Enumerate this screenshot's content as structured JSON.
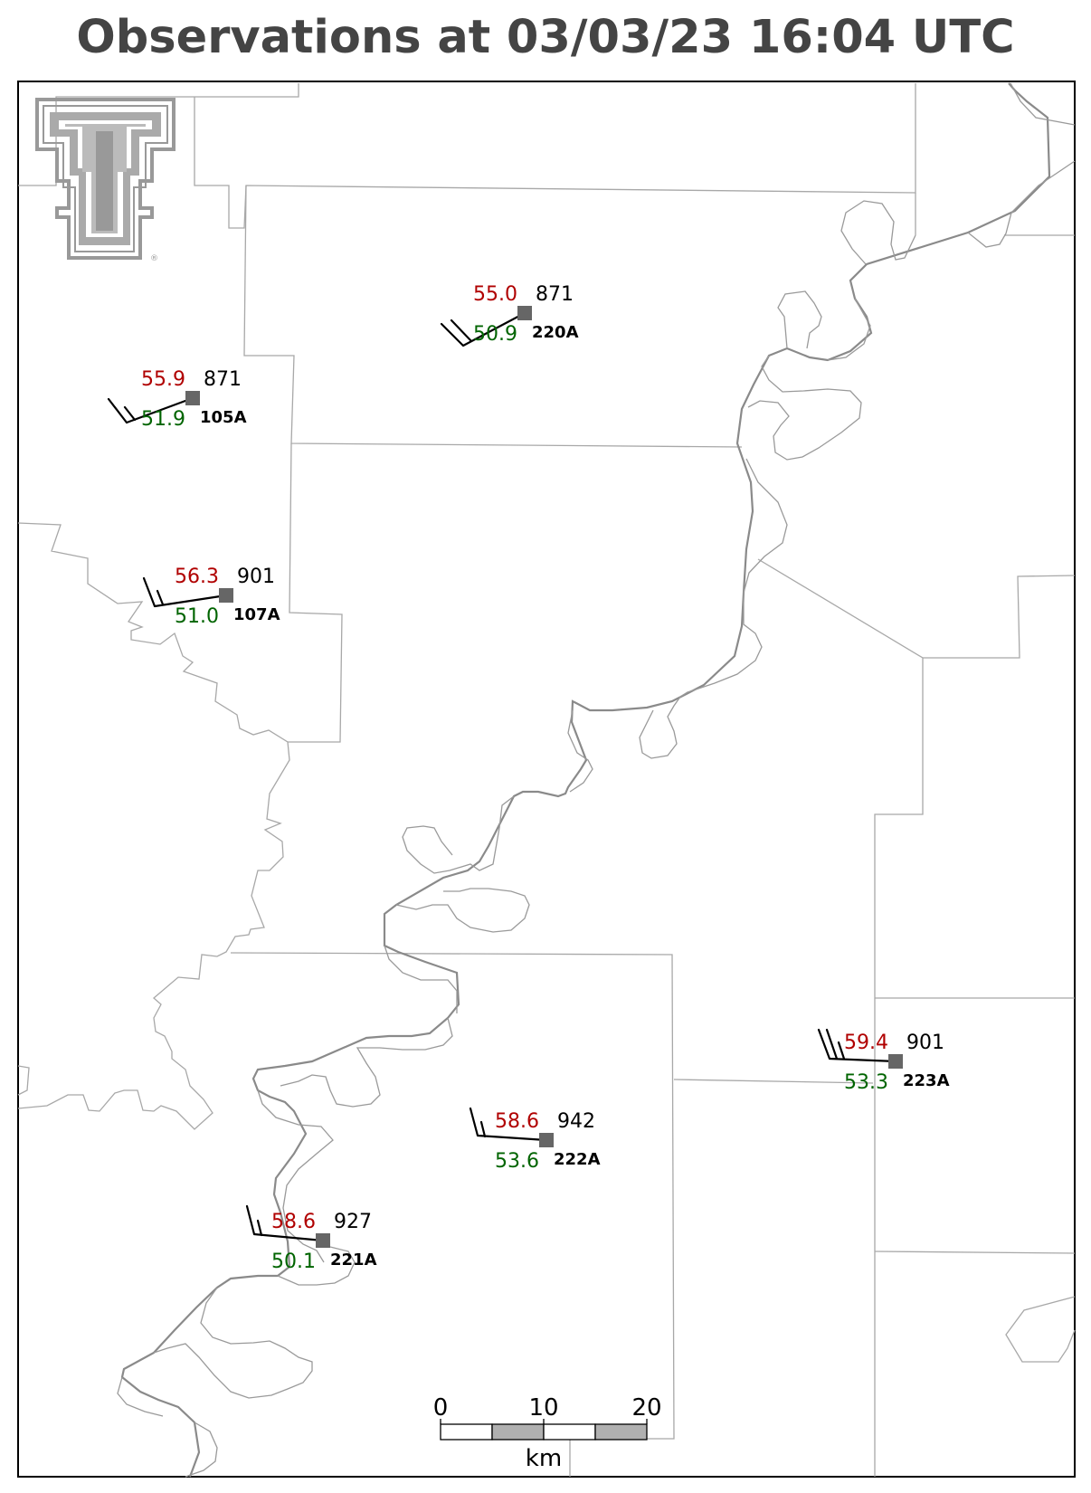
{
  "title": "Observations at 03/03/23 16:04 UTC",
  "colors": {
    "temperature": "#b00000",
    "dewpoint": "#006400",
    "station": "#666666",
    "logo": "#999999"
  },
  "logo": {
    "name": "texas-tech-double-t-logo",
    "mark": "®"
  },
  "stations": [
    {
      "id": "220A",
      "temperature": "55.0",
      "dewpoint": "50.9",
      "pressure": "871"
    },
    {
      "id": "105A",
      "temperature": "55.9",
      "dewpoint": "51.9",
      "pressure": "871"
    },
    {
      "id": "107A",
      "temperature": "56.3",
      "dewpoint": "51.0",
      "pressure": "901"
    },
    {
      "id": "223A",
      "temperature": "59.4",
      "dewpoint": "53.3",
      "pressure": "901"
    },
    {
      "id": "222A",
      "temperature": "58.6",
      "dewpoint": "53.6",
      "pressure": "942"
    },
    {
      "id": "221A",
      "temperature": "58.6",
      "dewpoint": "50.1",
      "pressure": "927"
    }
  ],
  "scale_bar": {
    "ticks": [
      "0",
      "10",
      "20"
    ],
    "unit": "km"
  }
}
